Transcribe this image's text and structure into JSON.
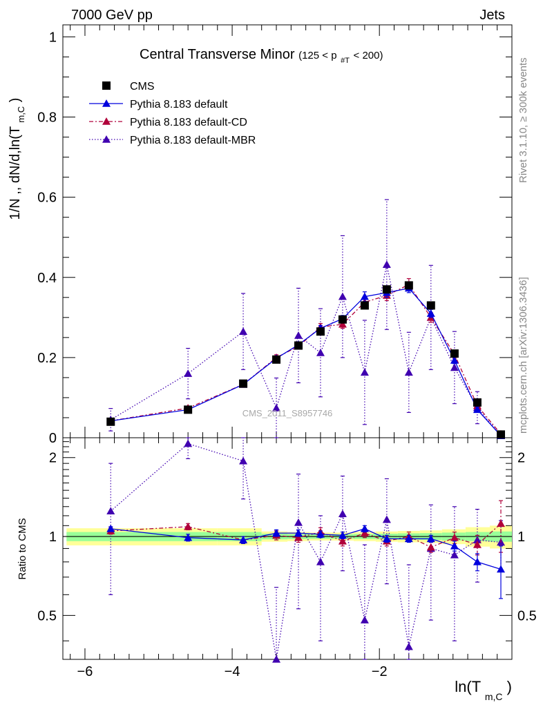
{
  "header": {
    "left": "7000 GeV pp",
    "right": "Jets"
  },
  "side_labels": {
    "rivet": "Rivet 3.1.10, ≥ 300k events",
    "mcplots": "mcplots.cern.ch [arXiv:1306.3436]"
  },
  "watermark": "CMS_2011_S8957746",
  "colors": {
    "cms": "#000000",
    "default": "#0000dd",
    "cd": "#b0003a",
    "mbr": "#4000b0",
    "band_yellow": "#ffff99",
    "band_green": "#99ff99"
  },
  "chart_data": [
    {
      "panel": "main",
      "type": "scatter",
      "title": "Central Transverse Minor",
      "title_suffix_parts": [
        "(125 < p",
        "#T",
        " < 200)"
      ],
      "ylabel_parts": [
        "1/N ,, dN/d,ln(T",
        "m,C",
        ")"
      ],
      "xlim": [
        -6.3,
        -0.2
      ],
      "ylim": [
        0,
        1.03
      ],
      "yticks": [
        0,
        0.2,
        0.4,
        0.6,
        0.8,
        1
      ],
      "ytick_labels": [
        "0",
        "0.2",
        "0.4",
        "0.6",
        "0.8",
        "1"
      ],
      "legend_position": "top-left",
      "x": [
        -5.65,
        -4.6,
        -3.85,
        -3.4,
        -3.1,
        -2.8,
        -2.5,
        -2.2,
        -1.9,
        -1.6,
        -1.3,
        -0.98,
        -0.67,
        -0.35
      ],
      "series": [
        {
          "name": "CMS",
          "key": "cms",
          "style": "markers",
          "values": [
            0.04,
            0.07,
            0.135,
            0.195,
            0.23,
            0.265,
            0.295,
            0.33,
            0.37,
            0.38,
            0.33,
            0.21,
            0.088,
            0.008
          ]
        },
        {
          "name": "Pythia 8.183 default",
          "key": "default",
          "style": "solid",
          "values": [
            0.042,
            0.07,
            0.133,
            0.198,
            0.232,
            0.273,
            0.297,
            0.352,
            0.362,
            0.373,
            0.31,
            0.193,
            0.07,
            0.005
          ],
          "errors": [
            0.003,
            0.003,
            0.004,
            0.006,
            0.006,
            0.007,
            0.008,
            0.012,
            0.012,
            0.011,
            0.01,
            0.008,
            0.006,
            0.002
          ]
        },
        {
          "name": "Pythia 8.183 default-CD",
          "key": "cd",
          "style": "dashdot",
          "values": [
            0.042,
            0.074,
            0.133,
            0.2,
            0.228,
            0.276,
            0.283,
            0.338,
            0.355,
            0.382,
            0.3,
            0.208,
            0.08,
            0.009
          ],
          "errors": [
            0.004,
            0.004,
            0.005,
            0.007,
            0.007,
            0.009,
            0.01,
            0.012,
            0.013,
            0.015,
            0.012,
            0.01,
            0.008,
            0.004
          ]
        },
        {
          "name": "Pythia 8.183 default-MBR",
          "key": "mbr",
          "style": "dotted",
          "values": [
            0.045,
            0.16,
            0.265,
            0.074,
            0.255,
            0.212,
            0.352,
            0.163,
            0.432,
            0.163,
            0.3,
            0.175,
            0.075,
            0.005
          ],
          "errors": [
            0.028,
            0.063,
            0.095,
            0.075,
            0.118,
            0.11,
            0.152,
            0.13,
            0.162,
            0.1,
            0.13,
            0.09,
            0.04,
            0.003
          ]
        }
      ]
    },
    {
      "panel": "ratio",
      "type": "scatter",
      "ylabel": "Ratio to CMS",
      "xlabel_parts": [
        "ln(T",
        "m,C",
        ")"
      ],
      "xlim": [
        -6.3,
        -0.2
      ],
      "ylim": [
        0.34,
        2.38
      ],
      "yticks": [
        0.5,
        1,
        2
      ],
      "ytick_labels": [
        "0.5",
        "1",
        "2"
      ],
      "xticks": [
        -6,
        -4,
        -2
      ],
      "xtick_labels": [
        "−6",
        "−4",
        "−2"
      ],
      "x": [
        -5.65,
        -4.6,
        -3.85,
        -3.4,
        -3.1,
        -2.8,
        -2.5,
        -2.2,
        -1.9,
        -1.6,
        -1.3,
        -0.98,
        -0.67,
        -0.35
      ],
      "bin_edges": [
        -6.25,
        -5.0,
        -4.2,
        -3.6,
        -3.25,
        -2.95,
        -2.65,
        -2.35,
        -2.05,
        -1.75,
        -1.45,
        -1.15,
        -0.83,
        -0.5,
        -0.2
      ],
      "band_yellow": [
        0.075,
        0.075,
        0.075,
        0.045,
        0.04,
        0.035,
        0.035,
        0.04,
        0.045,
        0.05,
        0.055,
        0.065,
        0.085,
        0.1
      ],
      "band_green": [
        0.04,
        0.04,
        0.04,
        0.025,
        0.022,
        0.02,
        0.02,
        0.022,
        0.025,
        0.028,
        0.03,
        0.035,
        0.04,
        0.045
      ],
      "series": [
        {
          "name": "Pythia 8.183 default",
          "key": "default",
          "style": "solid",
          "values": [
            1.07,
            0.99,
            0.97,
            1.03,
            1.03,
            1.02,
            1.01,
            1.07,
            0.98,
            0.98,
            0.98,
            0.92,
            0.8,
            0.75
          ],
          "errors": [
            0.02,
            0.03,
            0.03,
            0.03,
            0.03,
            0.03,
            0.03,
            0.03,
            0.03,
            0.03,
            0.03,
            0.04,
            0.06,
            0.17
          ]
        },
        {
          "name": "Pythia 8.183 default-CD",
          "key": "cd",
          "style": "dashdot",
          "values": [
            1.05,
            1.09,
            0.97,
            1.01,
            0.99,
            1.04,
            0.96,
            1.03,
            0.96,
            1.0,
            0.91,
            0.99,
            0.93,
            1.12
          ],
          "errors": [
            0.03,
            0.03,
            0.03,
            0.04,
            0.04,
            0.04,
            0.04,
            0.04,
            0.04,
            0.04,
            0.04,
            0.05,
            0.08,
            0.25
          ]
        },
        {
          "name": "Pythia 8.183 default-MBR",
          "key": "mbr",
          "style": "dotted",
          "values": [
            1.25,
            2.26,
            1.94,
            0.34,
            1.13,
            0.8,
            1.22,
            0.48,
            1.16,
            0.38,
            0.9,
            0.85,
            0.97,
            0.95
          ],
          "errors": [
            0.65,
            0.28,
            0.55,
            0.3,
            0.6,
            0.4,
            0.48,
            0.45,
            0.5,
            0.4,
            0.42,
            0.45,
            0.3,
            0.2
          ]
        }
      ]
    }
  ]
}
